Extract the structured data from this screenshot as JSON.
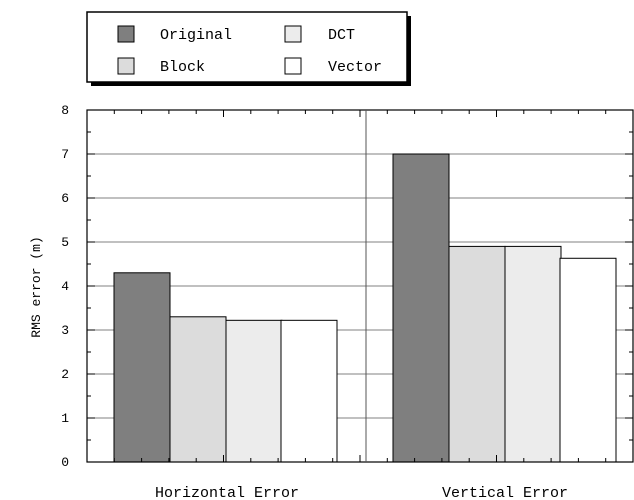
{
  "chart_data": {
    "type": "bar",
    "title": "",
    "xlabel": "",
    "ylabel": "RMS error (m)",
    "ylim": [
      0,
      8
    ],
    "yticks": [
      0,
      1,
      2,
      3,
      4,
      5,
      6,
      7,
      8
    ],
    "grid": true,
    "legend_position": "top-left",
    "categories": [
      "Horizontal Error",
      "Vertical Error"
    ],
    "series": [
      {
        "name": "Original",
        "values": [
          4.3,
          7.0
        ],
        "color": "#7f7f7f"
      },
      {
        "name": "Block",
        "values": [
          3.3,
          4.9
        ],
        "color": "#dcdcdc"
      },
      {
        "name": "DCT",
        "values": [
          3.22,
          4.9
        ],
        "color": "#ececec"
      },
      {
        "name": "Vector",
        "values": [
          3.22,
          4.63
        ],
        "color": "#ffffff"
      }
    ]
  }
}
